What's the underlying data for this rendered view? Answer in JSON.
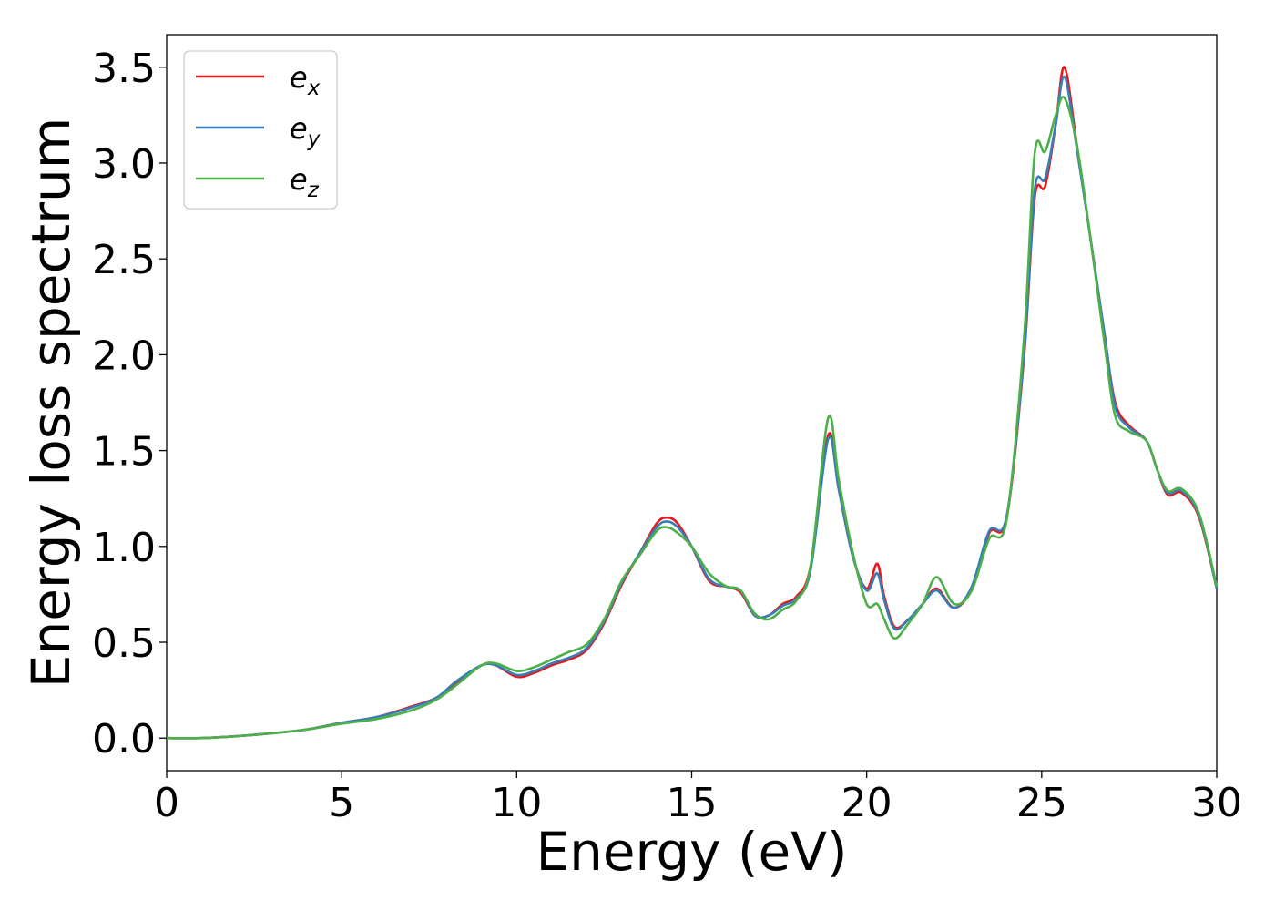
{
  "chart_data": {
    "type": "line",
    "title": "",
    "xlabel": "Energy (eV)",
    "ylabel": "Energy loss spectrum",
    "xlim": [
      0,
      30
    ],
    "ylim": [
      -0.17,
      3.67
    ],
    "xticks": [
      0,
      5,
      10,
      15,
      20,
      25,
      30
    ],
    "xtick_labels": [
      "0",
      "5",
      "10",
      "15",
      "20",
      "25",
      "30"
    ],
    "yticks": [
      0.0,
      0.5,
      1.0,
      1.5,
      2.0,
      2.5,
      3.0,
      3.5
    ],
    "ytick_labels": [
      "0.0",
      "0.5",
      "1.0",
      "1.5",
      "2.0",
      "2.5",
      "3.0",
      "3.5"
    ],
    "grid": false,
    "legend_position": "top-left",
    "series": [
      {
        "name": "e_x",
        "label_base": "e",
        "label_sub": "x",
        "color": "#e41a1c",
        "points": [
          [
            0,
            0
          ],
          [
            1,
            0
          ],
          [
            2,
            0.01
          ],
          [
            3,
            0.025
          ],
          [
            4,
            0.045
          ],
          [
            5,
            0.08
          ],
          [
            6,
            0.11
          ],
          [
            7,
            0.165
          ],
          [
            7.7,
            0.21
          ],
          [
            8.3,
            0.29
          ],
          [
            9,
            0.38
          ],
          [
            9.4,
            0.38
          ],
          [
            10,
            0.32
          ],
          [
            10.5,
            0.34
          ],
          [
            11,
            0.38
          ],
          [
            11.5,
            0.41
          ],
          [
            12,
            0.46
          ],
          [
            12.5,
            0.6
          ],
          [
            13,
            0.8
          ],
          [
            13.5,
            0.96
          ],
          [
            14,
            1.12
          ],
          [
            14.3,
            1.15
          ],
          [
            14.6,
            1.12
          ],
          [
            15,
            1.0
          ],
          [
            15.5,
            0.82
          ],
          [
            16,
            0.79
          ],
          [
            16.4,
            0.76
          ],
          [
            16.8,
            0.64
          ],
          [
            17.2,
            0.64
          ],
          [
            17.6,
            0.7
          ],
          [
            18,
            0.74
          ],
          [
            18.4,
            0.9
          ],
          [
            18.9,
            1.58
          ],
          [
            19.2,
            1.3
          ],
          [
            19.6,
            0.95
          ],
          [
            20,
            0.78
          ],
          [
            20.3,
            0.91
          ],
          [
            20.5,
            0.74
          ],
          [
            20.8,
            0.58
          ],
          [
            21.2,
            0.62
          ],
          [
            21.6,
            0.7
          ],
          [
            22,
            0.78
          ],
          [
            22.5,
            0.68
          ],
          [
            23,
            0.78
          ],
          [
            23.5,
            1.07
          ],
          [
            24,
            1.15
          ],
          [
            24.5,
            2.0
          ],
          [
            24.8,
            2.82
          ],
          [
            25.1,
            2.88
          ],
          [
            25.4,
            3.2
          ],
          [
            25.65,
            3.5
          ],
          [
            26,
            3.1
          ],
          [
            26.4,
            2.6
          ],
          [
            26.8,
            2.1
          ],
          [
            27.1,
            1.75
          ],
          [
            27.5,
            1.63
          ],
          [
            28,
            1.55
          ],
          [
            28.3,
            1.4
          ],
          [
            28.6,
            1.27
          ],
          [
            29,
            1.28
          ],
          [
            29.5,
            1.15
          ],
          [
            30,
            0.78
          ]
        ]
      },
      {
        "name": "e_y",
        "label_base": "e",
        "label_sub": "y",
        "color": "#377eb8",
        "points": [
          [
            0,
            0
          ],
          [
            1,
            0
          ],
          [
            2,
            0.01
          ],
          [
            3,
            0.025
          ],
          [
            4,
            0.045
          ],
          [
            5,
            0.08
          ],
          [
            6,
            0.11
          ],
          [
            7,
            0.16
          ],
          [
            7.7,
            0.21
          ],
          [
            8.3,
            0.3
          ],
          [
            9,
            0.38
          ],
          [
            9.4,
            0.38
          ],
          [
            10,
            0.33
          ],
          [
            10.5,
            0.35
          ],
          [
            11,
            0.39
          ],
          [
            11.5,
            0.42
          ],
          [
            12,
            0.47
          ],
          [
            12.5,
            0.61
          ],
          [
            13,
            0.81
          ],
          [
            13.5,
            0.96
          ],
          [
            14,
            1.1
          ],
          [
            14.3,
            1.13
          ],
          [
            14.6,
            1.1
          ],
          [
            15,
            1.0
          ],
          [
            15.5,
            0.83
          ],
          [
            16,
            0.79
          ],
          [
            16.4,
            0.77
          ],
          [
            16.8,
            0.64
          ],
          [
            17.2,
            0.64
          ],
          [
            17.6,
            0.69
          ],
          [
            18,
            0.73
          ],
          [
            18.4,
            0.88
          ],
          [
            18.9,
            1.56
          ],
          [
            19.2,
            1.3
          ],
          [
            19.6,
            0.95
          ],
          [
            20,
            0.77
          ],
          [
            20.3,
            0.86
          ],
          [
            20.5,
            0.72
          ],
          [
            20.8,
            0.57
          ],
          [
            21.2,
            0.62
          ],
          [
            21.6,
            0.7
          ],
          [
            22,
            0.77
          ],
          [
            22.5,
            0.68
          ],
          [
            23,
            0.79
          ],
          [
            23.5,
            1.08
          ],
          [
            24,
            1.16
          ],
          [
            24.5,
            2.02
          ],
          [
            24.8,
            2.86
          ],
          [
            25.1,
            2.92
          ],
          [
            25.4,
            3.2
          ],
          [
            25.65,
            3.45
          ],
          [
            26,
            3.08
          ],
          [
            26.4,
            2.6
          ],
          [
            26.8,
            2.1
          ],
          [
            27.1,
            1.73
          ],
          [
            27.5,
            1.62
          ],
          [
            28,
            1.55
          ],
          [
            28.3,
            1.4
          ],
          [
            28.6,
            1.28
          ],
          [
            29,
            1.29
          ],
          [
            29.5,
            1.16
          ],
          [
            30,
            0.78
          ]
        ]
      },
      {
        "name": "e_z",
        "label_base": "e",
        "label_sub": "z",
        "color": "#4daf4a",
        "points": [
          [
            0,
            0
          ],
          [
            1,
            0
          ],
          [
            2,
            0.01
          ],
          [
            3,
            0.025
          ],
          [
            4,
            0.045
          ],
          [
            5,
            0.075
          ],
          [
            6,
            0.1
          ],
          [
            7,
            0.145
          ],
          [
            7.7,
            0.2
          ],
          [
            8.3,
            0.28
          ],
          [
            9,
            0.38
          ],
          [
            9.4,
            0.39
          ],
          [
            10,
            0.35
          ],
          [
            10.5,
            0.37
          ],
          [
            11,
            0.41
          ],
          [
            11.5,
            0.45
          ],
          [
            12,
            0.49
          ],
          [
            12.5,
            0.62
          ],
          [
            13,
            0.82
          ],
          [
            13.5,
            0.95
          ],
          [
            14,
            1.08
          ],
          [
            14.3,
            1.1
          ],
          [
            14.6,
            1.07
          ],
          [
            15,
            1.0
          ],
          [
            15.5,
            0.86
          ],
          [
            16,
            0.79
          ],
          [
            16.4,
            0.77
          ],
          [
            16.8,
            0.65
          ],
          [
            17.2,
            0.62
          ],
          [
            17.6,
            0.67
          ],
          [
            18,
            0.72
          ],
          [
            18.4,
            0.9
          ],
          [
            18.9,
            1.67
          ],
          [
            19.2,
            1.35
          ],
          [
            19.6,
            0.97
          ],
          [
            20,
            0.7
          ],
          [
            20.3,
            0.7
          ],
          [
            20.5,
            0.62
          ],
          [
            20.8,
            0.52
          ],
          [
            21.2,
            0.6
          ],
          [
            21.6,
            0.7
          ],
          [
            22,
            0.84
          ],
          [
            22.5,
            0.7
          ],
          [
            23,
            0.77
          ],
          [
            23.5,
            1.04
          ],
          [
            24,
            1.14
          ],
          [
            24.5,
            2.1
          ],
          [
            24.8,
            3.05
          ],
          [
            25.1,
            3.06
          ],
          [
            25.4,
            3.25
          ],
          [
            25.65,
            3.34
          ],
          [
            26,
            3.1
          ],
          [
            26.4,
            2.6
          ],
          [
            26.8,
            2.05
          ],
          [
            27.1,
            1.68
          ],
          [
            27.5,
            1.6
          ],
          [
            28,
            1.55
          ],
          [
            28.3,
            1.4
          ],
          [
            28.6,
            1.29
          ],
          [
            29,
            1.3
          ],
          [
            29.5,
            1.17
          ],
          [
            30,
            0.79
          ]
        ]
      }
    ]
  }
}
